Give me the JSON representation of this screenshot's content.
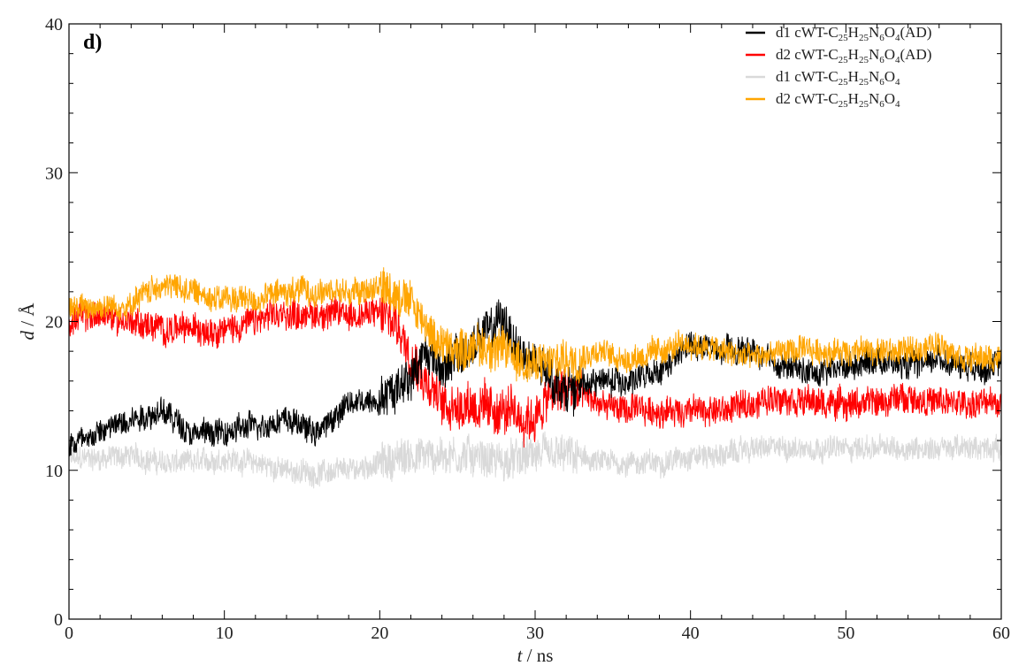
{
  "chart_data": {
    "type": "line",
    "panel_label": "d)",
    "xlabel": "t / ns",
    "ylabel": "d / Å",
    "xlim": [
      0,
      60
    ],
    "ylim": [
      0,
      40
    ],
    "xticks": [
      0,
      10,
      20,
      30,
      40,
      50,
      60
    ],
    "yticks": [
      0,
      10,
      20,
      30,
      40
    ],
    "grid": false,
    "legend_position": "top-right",
    "series": [
      {
        "name": "d1 cWT-C25H25N6O4(AD)",
        "name_parts": [
          {
            "t": "d1 cWT-C"
          },
          {
            "sub": "25"
          },
          {
            "t": "H"
          },
          {
            "sub": "25"
          },
          {
            "t": "N"
          },
          {
            "sub": "6"
          },
          {
            "t": "O"
          },
          {
            "sub": "4"
          },
          {
            "t": "(AD)"
          }
        ],
        "color": "#000000",
        "noise": 0.9,
        "x": [
          0,
          2,
          4,
          6,
          8,
          10,
          12,
          14,
          16,
          18,
          20,
          21,
          22,
          23,
          24,
          25,
          26,
          27,
          28,
          29,
          30,
          32,
          34,
          36,
          38,
          40,
          42,
          44,
          46,
          48,
          50,
          52,
          54,
          56,
          58,
          60
        ],
        "y": [
          11.8,
          12.5,
          13.5,
          14,
          12.5,
          12.5,
          13,
          13.5,
          12.5,
          14.5,
          14.8,
          15.5,
          16.5,
          18,
          17,
          17.5,
          18.5,
          19.5,
          20,
          18,
          17,
          15.5,
          16,
          16,
          16.5,
          18.5,
          18,
          18,
          17,
          16.5,
          17,
          17.5,
          17,
          17.5,
          17,
          17
        ]
      },
      {
        "name": "d2 cWT-C25H25N6O4(AD)",
        "name_parts": [
          {
            "t": "d2 cWT-C"
          },
          {
            "sub": "25"
          },
          {
            "t": "H"
          },
          {
            "sub": "25"
          },
          {
            "t": "N"
          },
          {
            "sub": "6"
          },
          {
            "t": "O"
          },
          {
            "sub": "4"
          },
          {
            "t": "(AD)"
          }
        ],
        "color": "#ff0000",
        "noise": 1.0,
        "x": [
          0,
          2,
          4,
          6,
          8,
          10,
          12,
          14,
          16,
          18,
          20,
          21,
          22,
          23,
          24,
          25,
          26,
          27,
          28,
          29,
          30,
          31,
          32,
          34,
          36,
          38,
          40,
          42,
          44,
          46,
          48,
          50,
          52,
          54,
          56,
          58,
          60
        ],
        "y": [
          20,
          20.5,
          20,
          19.5,
          19.5,
          19.5,
          20,
          20.5,
          20.5,
          20.5,
          20.5,
          20,
          18,
          16,
          14.5,
          14.5,
          14.5,
          14,
          14,
          13.5,
          13.5,
          15,
          15.5,
          14.5,
          14,
          14,
          14,
          14,
          14.5,
          15,
          14.5,
          14.5,
          14.5,
          15,
          14.5,
          14.5,
          14.5
        ]
      },
      {
        "name": "d1 cWT-C25H25N6O4",
        "name_parts": [
          {
            "t": "d1 cWT-C"
          },
          {
            "sub": "25"
          },
          {
            "t": "H"
          },
          {
            "sub": "25"
          },
          {
            "t": "N"
          },
          {
            "sub": "6"
          },
          {
            "t": "O"
          },
          {
            "sub": "4"
          }
        ],
        "color": "#d9d9d9",
        "noise": 0.8,
        "x": [
          0,
          2,
          4,
          6,
          8,
          10,
          12,
          14,
          16,
          18,
          20,
          22,
          24,
          26,
          28,
          30,
          32,
          34,
          36,
          38,
          40,
          42,
          44,
          46,
          48,
          50,
          52,
          54,
          56,
          58,
          60
        ],
        "y": [
          10.8,
          10.8,
          11,
          10.5,
          10.5,
          10.8,
          10.5,
          10,
          9.8,
          10,
          10.5,
          11,
          11,
          11,
          10.5,
          11,
          11,
          10.5,
          10.5,
          10.5,
          11,
          11,
          11.5,
          11.5,
          11.5,
          11.5,
          11.5,
          11.5,
          11.5,
          11.5,
          11.5
        ]
      },
      {
        "name": "d2 cWT-C25H25N6O4",
        "name_parts": [
          {
            "t": "d2 cWT-C"
          },
          {
            "sub": "25"
          },
          {
            "t": "H"
          },
          {
            "sub": "25"
          },
          {
            "t": "N"
          },
          {
            "sub": "6"
          },
          {
            "t": "O"
          },
          {
            "sub": "4"
          }
        ],
        "color": "#ffa500",
        "noise": 0.9,
        "x": [
          0,
          2,
          4,
          5,
          6,
          8,
          10,
          12,
          14,
          16,
          18,
          20,
          21,
          22,
          23,
          24,
          25,
          26,
          28,
          30,
          32,
          34,
          36,
          38,
          40,
          42,
          44,
          46,
          48,
          50,
          52,
          54,
          56,
          58,
          60
        ],
        "y": [
          21,
          21,
          21,
          22,
          22.5,
          22,
          21.5,
          21.5,
          22,
          22,
          22,
          22.3,
          22,
          21.5,
          19.5,
          18.5,
          18,
          18.5,
          18,
          17,
          17.5,
          18,
          17.5,
          18,
          18.5,
          18,
          17.5,
          18,
          18,
          18,
          18,
          18,
          18.5,
          17.5,
          17.5
        ]
      }
    ]
  }
}
